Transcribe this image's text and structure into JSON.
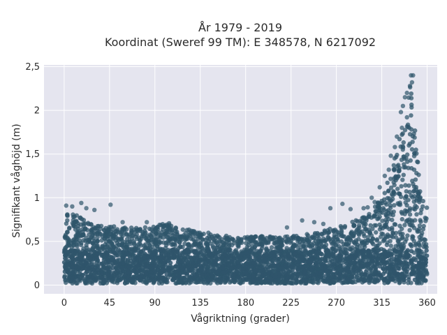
{
  "chart_data": {
    "type": "scatter",
    "title_line1": "År 1979 - 2019",
    "title_line2": "Koordinat (Sweref 99 TM): E 348578, N 6217092",
    "xlabel": "Vågriktning (grader)",
    "ylabel": "Signifikant våghöjd (m)",
    "xlim": [
      -20,
      370
    ],
    "ylim": [
      -0.1,
      2.52
    ],
    "x_ticks": [
      {
        "value": 0,
        "label": "0"
      },
      {
        "value": 45,
        "label": "45"
      },
      {
        "value": 90,
        "label": "90"
      },
      {
        "value": 135,
        "label": "135"
      },
      {
        "value": 180,
        "label": "180"
      },
      {
        "value": 225,
        "label": "225"
      },
      {
        "value": 270,
        "label": "270"
      },
      {
        "value": 315,
        "label": "315"
      },
      {
        "value": 360,
        "label": "360"
      }
    ],
    "y_ticks": [
      {
        "value": 0,
        "label": "0"
      },
      {
        "value": 0.5,
        "label": "0,5"
      },
      {
        "value": 1,
        "label": "1"
      },
      {
        "value": 1.5,
        "label": "1,5"
      },
      {
        "value": 2,
        "label": "2"
      },
      {
        "value": 2.5,
        "label": "2,5"
      }
    ],
    "grid": true,
    "plot_background": "#e5e5ef",
    "marker_color": "#2f556b",
    "envelope": [
      {
        "x": 0,
        "low": 0.02,
        "high": 0.88
      },
      {
        "x": 15,
        "low": 0.02,
        "high": 0.78
      },
      {
        "x": 30,
        "low": 0.02,
        "high": 0.7
      },
      {
        "x": 45,
        "low": 0.02,
        "high": 0.68
      },
      {
        "x": 60,
        "low": 0.02,
        "high": 0.66
      },
      {
        "x": 75,
        "low": 0.02,
        "high": 0.66
      },
      {
        "x": 90,
        "low": 0.02,
        "high": 0.68
      },
      {
        "x": 105,
        "low": 0.02,
        "high": 0.72
      },
      {
        "x": 120,
        "low": 0.02,
        "high": 0.64
      },
      {
        "x": 135,
        "low": 0.02,
        "high": 0.62
      },
      {
        "x": 150,
        "low": 0.02,
        "high": 0.58
      },
      {
        "x": 165,
        "low": 0.02,
        "high": 0.56
      },
      {
        "x": 180,
        "low": 0.02,
        "high": 0.55
      },
      {
        "x": 195,
        "low": 0.02,
        "high": 0.56
      },
      {
        "x": 210,
        "low": 0.02,
        "high": 0.56
      },
      {
        "x": 225,
        "low": 0.02,
        "high": 0.56
      },
      {
        "x": 240,
        "low": 0.02,
        "high": 0.58
      },
      {
        "x": 255,
        "low": 0.02,
        "high": 0.62
      },
      {
        "x": 270,
        "low": 0.02,
        "high": 0.66
      },
      {
        "x": 285,
        "low": 0.02,
        "high": 0.72
      },
      {
        "x": 300,
        "low": 0.02,
        "high": 0.8
      },
      {
        "x": 310,
        "low": 0.02,
        "high": 0.92
      },
      {
        "x": 320,
        "low": 0.02,
        "high": 1.15
      },
      {
        "x": 330,
        "low": 0.02,
        "high": 1.55
      },
      {
        "x": 338,
        "low": 0.02,
        "high": 2.0
      },
      {
        "x": 344,
        "low": 0.02,
        "high": 2.35
      },
      {
        "x": 350,
        "low": 0.02,
        "high": 1.5
      },
      {
        "x": 356,
        "low": 0.02,
        "high": 1.0
      },
      {
        "x": 360,
        "low": 0.02,
        "high": 0.95
      }
    ],
    "outliers": [
      {
        "x": 344,
        "y": 2.4
      },
      {
        "x": 346,
        "y": 2.4
      },
      {
        "x": 345,
        "y": 2.32
      },
      {
        "x": 343,
        "y": 2.28
      },
      {
        "x": 340,
        "y": 2.2
      },
      {
        "x": 338,
        "y": 2.15
      },
      {
        "x": 336,
        "y": 2.05
      },
      {
        "x": 334,
        "y": 1.98
      },
      {
        "x": 340,
        "y": 1.92
      },
      {
        "x": 330,
        "y": 1.7
      },
      {
        "x": 328,
        "y": 1.58
      },
      {
        "x": 324,
        "y": 1.48
      },
      {
        "x": 335,
        "y": 1.8
      },
      {
        "x": 322,
        "y": 1.32
      },
      {
        "x": 318,
        "y": 1.25
      },
      {
        "x": 313,
        "y": 1.12
      },
      {
        "x": 305,
        "y": 1.0
      },
      {
        "x": 308,
        "y": 0.95
      },
      {
        "x": 276,
        "y": 0.93
      },
      {
        "x": 264,
        "y": 0.88
      },
      {
        "x": 284,
        "y": 0.87
      },
      {
        "x": 297,
        "y": 0.88
      },
      {
        "x": 301,
        "y": 0.89
      },
      {
        "x": 2,
        "y": 0.91
      },
      {
        "x": 8,
        "y": 0.9
      },
      {
        "x": 17,
        "y": 0.94
      },
      {
        "x": 22,
        "y": 0.88
      },
      {
        "x": 30,
        "y": 0.86
      },
      {
        "x": 46,
        "y": 0.92
      },
      {
        "x": 58,
        "y": 0.72
      },
      {
        "x": 82,
        "y": 0.72
      },
      {
        "x": 248,
        "y": 0.72
      },
      {
        "x": 257,
        "y": 0.7
      },
      {
        "x": 236,
        "y": 0.74
      },
      {
        "x": 221,
        "y": 0.66
      }
    ]
  }
}
